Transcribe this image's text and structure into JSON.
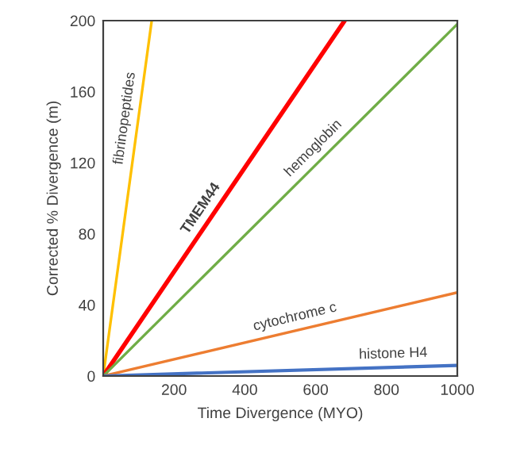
{
  "chart_data": {
    "type": "line",
    "xlabel": "Time Divergence (MYO)",
    "ylabel": "Corrected % Divergence (m)",
    "xlim": [
      0,
      1000
    ],
    "xticks": [
      200,
      400,
      600,
      800,
      1000
    ],
    "ylim": [
      0,
      200
    ],
    "yticks": [
      0,
      40,
      80,
      120,
      160,
      200
    ],
    "grid": false,
    "legend": false,
    "series": [
      {
        "name": "fibrinopeptides",
        "color": "#ffc000",
        "x": [
          0,
          137
        ],
        "values": [
          0,
          200
        ]
      },
      {
        "name": "TMEM44",
        "color": "#ff0000",
        "x": [
          0,
          682
        ],
        "values": [
          0,
          200
        ]
      },
      {
        "name": "hemoglobin",
        "color": "#70ad47",
        "x": [
          0,
          1000
        ],
        "values": [
          0,
          198
        ]
      },
      {
        "name": "cytochrome c",
        "color": "#ed7d31",
        "x": [
          0,
          1000
        ],
        "values": [
          0,
          47
        ]
      },
      {
        "name": "histone H4",
        "color": "#4472c4",
        "x": [
          0,
          1000
        ],
        "values": [
          0,
          6
        ]
      }
    ]
  }
}
